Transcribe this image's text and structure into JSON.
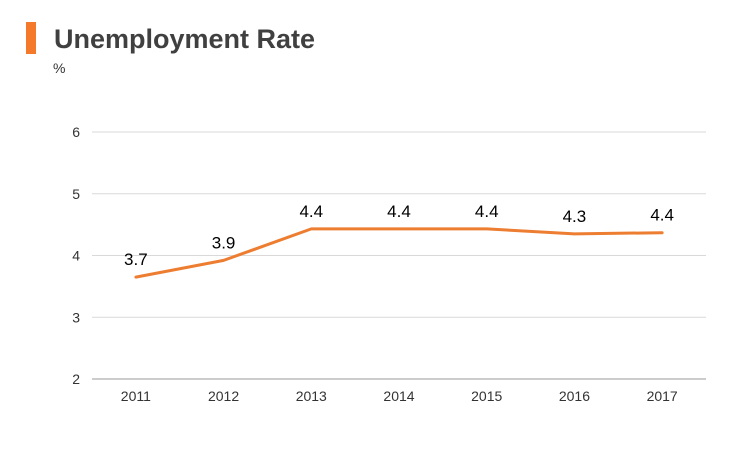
{
  "title": "Unemployment Rate",
  "unit": "%",
  "colors": {
    "accent": "#f5792a",
    "line": "#ed7d31",
    "grid": "#d9d9d9",
    "axis": "#999999",
    "tick_text": "#333333",
    "label_text": "#000000"
  },
  "chart_data": {
    "type": "line",
    "title": "Unemployment Rate",
    "ylabel": "%",
    "xlabel": "",
    "x": [
      "2011",
      "2012",
      "2013",
      "2014",
      "2015",
      "2016",
      "2017"
    ],
    "series": [
      {
        "values": [
          3.65,
          3.92,
          4.43,
          4.43,
          4.43,
          4.35,
          4.37
        ],
        "labels": [
          "3.7",
          "3.9",
          "4.4",
          "4.4",
          "4.4",
          "4.3",
          "4.4"
        ]
      }
    ],
    "ylim": [
      2,
      6
    ],
    "yticks": [
      "2",
      "3",
      "4",
      "5",
      "6"
    ],
    "grid": true,
    "legend": "none"
  }
}
